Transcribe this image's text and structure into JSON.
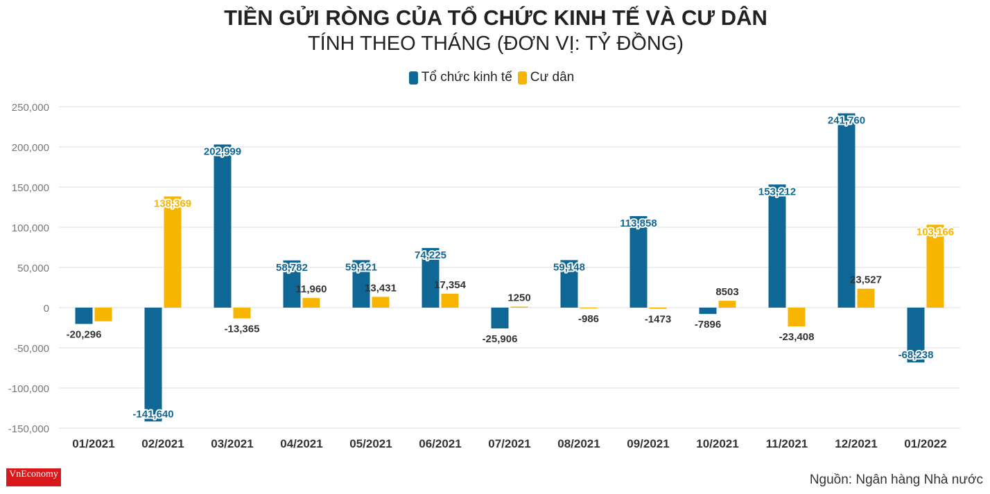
{
  "title": "TIỀN GỬI RÒNG CỦA TỔ CHỨC KINH TẾ VÀ CƯ DÂN",
  "subtitle": "TÍNH THEO THÁNG (ĐƠN VỊ: TỶ ĐỒNG)",
  "source": "Nguồn: Ngân hàng Nhà nước",
  "logo_text": "VnEconomy",
  "colors": {
    "to_chuc": "#0f6796",
    "cu_dan": "#f7b500",
    "grid": "#e3e3e3"
  },
  "chart_data": {
    "type": "bar",
    "title": "TIỀN GỬI RÒNG CỦA TỔ CHỨC KINH TẾ VÀ CƯ DÂN",
    "subtitle": "TÍNH THEO THÁNG (ĐƠN VỊ: TỶ ĐỒNG)",
    "categories": [
      "01/2021",
      "02/2021",
      "03/2021",
      "04/2021",
      "05/2021",
      "06/2021",
      "07/2021",
      "08/2021",
      "09/2021",
      "10/2021",
      "11/2021",
      "12/2021",
      "01/2022"
    ],
    "series": [
      {
        "name": "Tổ chức kinh tế",
        "values": [
          -20296,
          -141640,
          202999,
          58782,
          59121,
          74225,
          -25906,
          59148,
          113858,
          -7896,
          153212,
          241760,
          -68238
        ],
        "labels": [
          "-20,296",
          "-141,640",
          "202,999",
          "58,782",
          "59,121",
          "74,225",
          "-25,906",
          "59,148",
          "113,858",
          "-7896",
          "153,212",
          "241,760",
          "-68,238"
        ]
      },
      {
        "name": "Cư dân",
        "values": [
          -17000,
          138369,
          -13365,
          11960,
          13431,
          17354,
          1250,
          -986,
          -1473,
          8503,
          -23408,
          23527,
          103166
        ],
        "labels": [
          "",
          "138,369",
          "-13,365",
          "11,960",
          "13,431",
          "17,354",
          "1250",
          "-986",
          "-1473",
          "8503",
          "-23,408",
          "23,527",
          "103,166"
        ]
      }
    ],
    "ylim": [
      -150000,
      250000
    ],
    "yticks": [
      -150000,
      -100000,
      -50000,
      0,
      50000,
      100000,
      150000,
      200000,
      250000
    ],
    "ytick_labels": [
      "-150,000",
      "-100,000",
      "-50,000",
      "0",
      "50,000",
      "100,000",
      "150,000",
      "200,000",
      "250,000"
    ],
    "legend_position": "top-center",
    "grid": true
  }
}
